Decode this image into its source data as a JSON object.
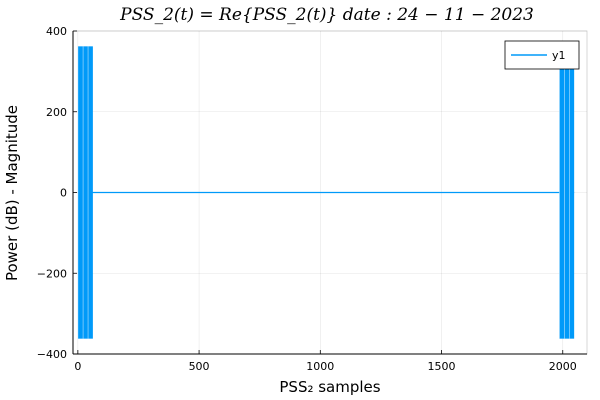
{
  "chart_data": {
    "type": "line",
    "title": "PSS_2(t) = Re{PSS_2(t)}      date : 24 − 11 − 2023",
    "xlabel": "PSS₂ samples",
    "ylabel": "Power (dB) - Magnitude",
    "xlim": [
      -20,
      2100
    ],
    "ylim": [
      -400,
      400
    ],
    "xticks": [
      0,
      500,
      1000,
      1500,
      2000
    ],
    "yticks": [
      -400,
      -200,
      0,
      200,
      400
    ],
    "grid": true,
    "legend_position": "top-right",
    "series": [
      {
        "name": "y1",
        "color": "#009AF9",
        "bursts": [
          {
            "x_start": 0,
            "x_end": 62,
            "amplitude": 362
          },
          {
            "x_start": 1986,
            "x_end": 2047,
            "amplitude": 362
          }
        ],
        "baseline": 0,
        "x_range": [
          0,
          2047
        ]
      }
    ]
  }
}
